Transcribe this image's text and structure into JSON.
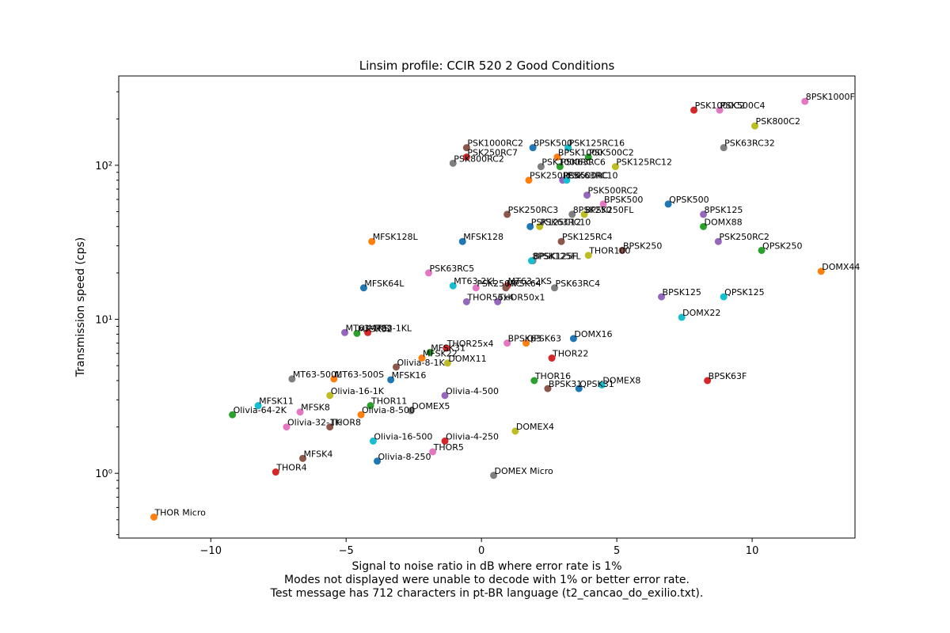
{
  "chart_data": {
    "type": "scatter",
    "title": "Linsim profile: CCIR 520 2 Good Conditions",
    "xlabel": "Signal to noise ratio in dB where error rate is 1%",
    "xlabel_notes": [
      "Modes not displayed were unable to decode with 1% or better error rate.",
      "Test message has 712 characters in pt-BR language (t2_cancao_do_exilio.txt)."
    ],
    "ylabel": "Transmission speed (cps)",
    "yscale": "log",
    "xlim": [
      -13.4,
      13.8
    ],
    "ylim": [
      0.38,
      380
    ],
    "xticks": [
      -10,
      -5,
      0,
      5,
      10
    ],
    "xtick_labels": [
      "−10",
      "−5",
      "0",
      "5",
      "10"
    ],
    "yticks": [
      1,
      10,
      100
    ],
    "ytick_labels": [
      "10⁰",
      "10¹",
      "10²"
    ],
    "grid": false,
    "points": [
      {
        "name": "8PSK1000F",
        "x": 11.95,
        "y": 260,
        "color": "#e377c2"
      },
      {
        "name": "PSK1000C2",
        "x": 7.85,
        "y": 228,
        "color": "#d62728"
      },
      {
        "name": "PSK500C4",
        "x": 8.8,
        "y": 228,
        "color": "#e377c2"
      },
      {
        "name": "PSK800C2",
        "x": 10.1,
        "y": 180,
        "color": "#bcbd22"
      },
      {
        "name": "PSK63RC32",
        "x": 8.95,
        "y": 130,
        "color": "#7f7f7f"
      },
      {
        "name": "PSK1000RC2",
        "x": -0.55,
        "y": 130,
        "color": "#8c564b"
      },
      {
        "name": "8PSK500",
        "x": 1.9,
        "y": 130,
        "color": "#1f77b4"
      },
      {
        "name": "PSK125RC16",
        "x": 3.2,
        "y": 130,
        "color": "#17becf"
      },
      {
        "name": "PSK250RC7",
        "x": -0.55,
        "y": 113,
        "color": "#d62728"
      },
      {
        "name": "BPSK1000",
        "x": 2.8,
        "y": 113,
        "color": "#ff7f0e"
      },
      {
        "name": "PSK500C2",
        "x": 3.95,
        "y": 113,
        "color": "#2ca02c"
      },
      {
        "name": "PSK800RC2",
        "x": -1.05,
        "y": 103,
        "color": "#7f7f7f"
      },
      {
        "name": "PSK1000RC",
        "x": 2.2,
        "y": 98,
        "color": "#7f7f7f"
      },
      {
        "name": "PSK63RC6",
        "x": 2.9,
        "y": 98,
        "color": "#2ca02c"
      },
      {
        "name": "PSK125RC12",
        "x": 4.95,
        "y": 98,
        "color": "#bcbd22"
      },
      {
        "name": "PSK250RC5",
        "x": 1.75,
        "y": 80,
        "color": "#ff7f0e"
      },
      {
        "name": "PSK500RC",
        "x": 3.0,
        "y": 80,
        "color": "#9467bd"
      },
      {
        "name": "PSK63RC10",
        "x": 3.15,
        "y": 80,
        "color": "#17becf"
      },
      {
        "name": "PSK500RC2",
        "x": 3.9,
        "y": 64,
        "color": "#9467bd"
      },
      {
        "name": "BPSK500",
        "x": 4.5,
        "y": 56,
        "color": "#e377c2"
      },
      {
        "name": "QPSK500",
        "x": 6.9,
        "y": 56,
        "color": "#1f77b4"
      },
      {
        "name": "PSK250RC3",
        "x": 0.95,
        "y": 48,
        "color": "#8c564b"
      },
      {
        "name": "8PSK250",
        "x": 3.35,
        "y": 48,
        "color": "#7f7f7f"
      },
      {
        "name": "8PSK250FL",
        "x": 3.8,
        "y": 48,
        "color": "#bcbd22"
      },
      {
        "name": "8PSK125",
        "x": 8.2,
        "y": 48,
        "color": "#9467bd"
      },
      {
        "name": "PSK125C12",
        "x": 1.8,
        "y": 40,
        "color": "#1f77b4"
      },
      {
        "name": "PSK63RC10",
        "x": 2.15,
        "y": 40,
        "color": "#bcbd22"
      },
      {
        "name": "DOMX88",
        "x": 8.2,
        "y": 40,
        "color": "#2ca02c"
      },
      {
        "name": "MFSK128L",
        "x": -4.05,
        "y": 32,
        "color": "#ff7f0e"
      },
      {
        "name": "MFSK128",
        "x": -0.7,
        "y": 32,
        "color": "#1f77b4"
      },
      {
        "name": "PSK125RC4",
        "x": 2.95,
        "y": 32,
        "color": "#8c564b"
      },
      {
        "name": "PSK250RC2",
        "x": 8.75,
        "y": 32,
        "color": "#9467bd"
      },
      {
        "name": "QPSK250",
        "x": 10.35,
        "y": 28,
        "color": "#2ca02c"
      },
      {
        "name": "BPSK250",
        "x": 5.2,
        "y": 28,
        "color": "#8c564b"
      },
      {
        "name": "THOR100",
        "x": 3.95,
        "y": 26,
        "color": "#bcbd22"
      },
      {
        "name": "8PSK125F",
        "x": 1.9,
        "y": 24,
        "color": "#7f7f7f"
      },
      {
        "name": "8PSK125FL",
        "x": 1.85,
        "y": 24,
        "color": "#17becf"
      },
      {
        "name": "DOMX44",
        "x": 12.55,
        "y": 20.5,
        "color": "#ff7f0e"
      },
      {
        "name": "PSK63RC5",
        "x": -1.95,
        "y": 20,
        "color": "#e377c2"
      },
      {
        "name": "MFSK64L",
        "x": -4.35,
        "y": 16,
        "color": "#1f77b4"
      },
      {
        "name": "MT63-2KL",
        "x": -1.05,
        "y": 16.5,
        "color": "#17becf"
      },
      {
        "name": "PSK250RC",
        "x": -0.2,
        "y": 16,
        "color": "#e377c2"
      },
      {
        "name": "MT63-2KS",
        "x": 0.95,
        "y": 16.5,
        "color": "#d62728"
      },
      {
        "name": "MFSK64",
        "x": 0.9,
        "y": 16,
        "color": "#8c564b"
      },
      {
        "name": "PSK63RC4",
        "x": 2.7,
        "y": 16,
        "color": "#7f7f7f"
      },
      {
        "name": "BPSK125",
        "x": 6.65,
        "y": 14,
        "color": "#9467bd"
      },
      {
        "name": "QPSK125",
        "x": 8.95,
        "y": 14,
        "color": "#17becf"
      },
      {
        "name": "THOR56x4",
        "x": -0.55,
        "y": 13,
        "color": "#9467bd"
      },
      {
        "name": "THOR50x1",
        "x": 0.6,
        "y": 13,
        "color": "#9467bd"
      },
      {
        "name": "DOMX22",
        "x": 7.4,
        "y": 10.3,
        "color": "#17becf"
      },
      {
        "name": "MT63-1KS",
        "x": -5.05,
        "y": 8.2,
        "color": "#9467bd"
      },
      {
        "name": "MFSK32",
        "x": -4.6,
        "y": 8.1,
        "color": "#2ca02c"
      },
      {
        "name": "MT63-1KL",
        "x": -4.2,
        "y": 8.2,
        "color": "#d62728"
      },
      {
        "name": "DOMX16",
        "x": 3.4,
        "y": 7.5,
        "color": "#1f77b4"
      },
      {
        "name": "BPSK63",
        "x": 0.95,
        "y": 7.0,
        "color": "#e377c2"
      },
      {
        "name": "QPSK63",
        "x": 1.65,
        "y": 7.0,
        "color": "#ff7f0e"
      },
      {
        "name": "THOR25x4",
        "x": -1.3,
        "y": 6.5,
        "color": "#d62728"
      },
      {
        "name": "MFSK31",
        "x": -1.9,
        "y": 6.1,
        "color": "#2ca02c"
      },
      {
        "name": "MFSK22",
        "x": -2.2,
        "y": 5.6,
        "color": "#ff7f0e"
      },
      {
        "name": "THOR22",
        "x": 2.6,
        "y": 5.6,
        "color": "#d62728"
      },
      {
        "name": "DOMX11",
        "x": -1.25,
        "y": 5.2,
        "color": "#bcbd22"
      },
      {
        "name": "Olivia-8-1K",
        "x": -3.15,
        "y": 4.9,
        "color": "#8c564b"
      },
      {
        "name": "MT63-500L",
        "x": -7.0,
        "y": 4.1,
        "color": "#7f7f7f"
      },
      {
        "name": "MT63-500S",
        "x": -5.45,
        "y": 4.1,
        "color": "#ff7f0e"
      },
      {
        "name": "MFSK16",
        "x": -3.35,
        "y": 4.05,
        "color": "#1f77b4"
      },
      {
        "name": "THOR16",
        "x": 1.95,
        "y": 4.0,
        "color": "#2ca02c"
      },
      {
        "name": "BPSK63F",
        "x": 8.35,
        "y": 4.0,
        "color": "#d62728"
      },
      {
        "name": "DOMEX8",
        "x": 4.45,
        "y": 3.75,
        "color": "#17becf"
      },
      {
        "name": "BPSK31",
        "x": 2.45,
        "y": 3.55,
        "color": "#8c564b"
      },
      {
        "name": "QPSK31",
        "x": 3.6,
        "y": 3.55,
        "color": "#1f77b4"
      },
      {
        "name": "Olivia-16-1K",
        "x": -5.6,
        "y": 3.2,
        "color": "#bcbd22"
      },
      {
        "name": "Olivia-4-500",
        "x": -1.35,
        "y": 3.2,
        "color": "#9467bd"
      },
      {
        "name": "MFSK11",
        "x": -8.25,
        "y": 2.75,
        "color": "#17becf"
      },
      {
        "name": "THOR11",
        "x": -4.1,
        "y": 2.75,
        "color": "#2ca02c"
      },
      {
        "name": "DOMEX5",
        "x": -2.6,
        "y": 2.55,
        "color": "#7f7f7f"
      },
      {
        "name": "MFSK8",
        "x": -6.7,
        "y": 2.5,
        "color": "#e377c2"
      },
      {
        "name": "Olivia-8-500",
        "x": -4.45,
        "y": 2.4,
        "color": "#ff7f0e"
      },
      {
        "name": "Olivia-64-2K",
        "x": -9.2,
        "y": 2.4,
        "color": "#2ca02c"
      },
      {
        "name": "Olivia-32-1K",
        "x": -7.2,
        "y": 2.0,
        "color": "#e377c2"
      },
      {
        "name": "THOR8",
        "x": -5.6,
        "y": 2.0,
        "color": "#8c564b"
      },
      {
        "name": "DOMEX4",
        "x": 1.25,
        "y": 1.88,
        "color": "#bcbd22"
      },
      {
        "name": "Olivia-16-500",
        "x": -4.0,
        "y": 1.62,
        "color": "#17becf"
      },
      {
        "name": "Olivia-4-250",
        "x": -1.35,
        "y": 1.62,
        "color": "#d62728"
      },
      {
        "name": "THOR5",
        "x": -1.8,
        "y": 1.38,
        "color": "#e377c2"
      },
      {
        "name": "MFSK4",
        "x": -6.6,
        "y": 1.25,
        "color": "#8c564b"
      },
      {
        "name": "Olivia-8-250",
        "x": -3.85,
        "y": 1.2,
        "color": "#1f77b4"
      },
      {
        "name": "THOR4",
        "x": -7.6,
        "y": 1.02,
        "color": "#d62728"
      },
      {
        "name": "DOMEX Micro",
        "x": 0.45,
        "y": 0.97,
        "color": "#7f7f7f"
      },
      {
        "name": "THOR Micro",
        "x": -12.1,
        "y": 0.52,
        "color": "#ff7f0e"
      }
    ]
  }
}
